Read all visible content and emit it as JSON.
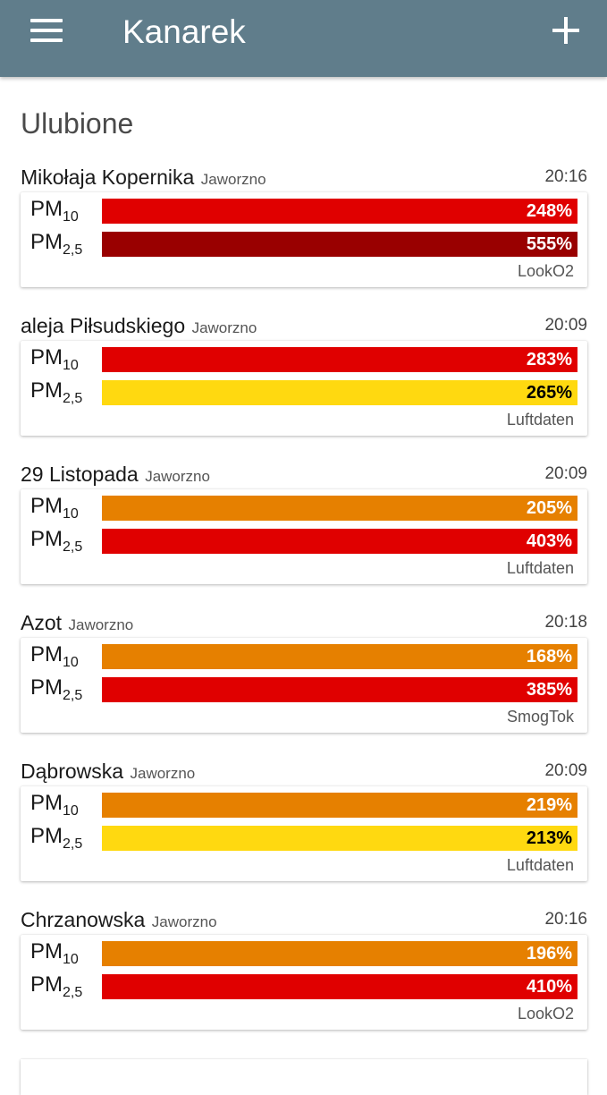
{
  "app": {
    "title": "Kanarek"
  },
  "icons": {
    "menu": "menu-icon",
    "add": "plus-icon"
  },
  "colors": {
    "appbar": "#607d8b",
    "red": "#e00000",
    "dark_red": "#990000",
    "orange": "#e68000",
    "yellow": "#ffd910"
  },
  "section": {
    "title": "Ulubione"
  },
  "pollutants": {
    "pm10": {
      "base": "PM",
      "sub": "10"
    },
    "pm25": {
      "base": "PM",
      "sub": "2,5"
    }
  },
  "stations": [
    {
      "name": "Mikołaja Kopernika",
      "city": "Jaworzno",
      "time": "20:16",
      "pm10": {
        "value": "248%",
        "color": "#e00000",
        "text_color": "#ffffff"
      },
      "pm25": {
        "value": "555%",
        "color": "#990000",
        "text_color": "#ffffff"
      },
      "source": "LookO2"
    },
    {
      "name": "aleja Piłsudskiego",
      "city": "Jaworzno",
      "time": "20:09",
      "pm10": {
        "value": "283%",
        "color": "#e00000",
        "text_color": "#ffffff"
      },
      "pm25": {
        "value": "265%",
        "color": "#ffd910",
        "text_color": "#000000"
      },
      "source": "Luftdaten"
    },
    {
      "name": "29 Listopada",
      "city": "Jaworzno",
      "time": "20:09",
      "pm10": {
        "value": "205%",
        "color": "#e68000",
        "text_color": "#ffffff"
      },
      "pm25": {
        "value": "403%",
        "color": "#e00000",
        "text_color": "#ffffff"
      },
      "source": "Luftdaten"
    },
    {
      "name": "Azot",
      "city": "Jaworzno",
      "time": "20:18",
      "pm10": {
        "value": "168%",
        "color": "#e68000",
        "text_color": "#ffffff"
      },
      "pm25": {
        "value": "385%",
        "color": "#e00000",
        "text_color": "#ffffff"
      },
      "source": "SmogTok"
    },
    {
      "name": "Dąbrowska",
      "city": "Jaworzno",
      "time": "20:09",
      "pm10": {
        "value": "219%",
        "color": "#e68000",
        "text_color": "#ffffff"
      },
      "pm25": {
        "value": "213%",
        "color": "#ffd910",
        "text_color": "#000000"
      },
      "source": "Luftdaten"
    },
    {
      "name": "Chrzanowska",
      "city": "Jaworzno",
      "time": "20:16",
      "pm10": {
        "value": "196%",
        "color": "#e68000",
        "text_color": "#ffffff"
      },
      "pm25": {
        "value": "410%",
        "color": "#e00000",
        "text_color": "#ffffff"
      },
      "source": "LookO2"
    }
  ]
}
